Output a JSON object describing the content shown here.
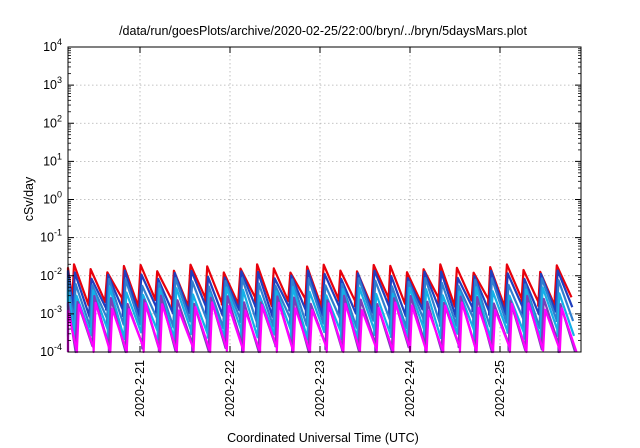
{
  "chart_data": {
    "type": "line",
    "title": "/data/run/goesPlots/archive/2020-02-25/22:00/bryn/../bryn/5daysMars.plot",
    "xlabel": "Coordinated Universal Time (UTC)",
    "ylabel": "cSv/day",
    "y_scale": "log",
    "ylim": [
      0.0001,
      10000
    ],
    "y_ticks": [
      {
        "base": "10",
        "exp": "-4"
      },
      {
        "base": "10",
        "exp": "-3"
      },
      {
        "base": "10",
        "exp": "-2"
      },
      {
        "base": "10",
        "exp": "-1"
      },
      {
        "base": "10",
        "exp": "0"
      },
      {
        "base": "10",
        "exp": "1"
      },
      {
        "base": "10",
        "exp": "2"
      },
      {
        "base": "10",
        "exp": "3"
      },
      {
        "base": "10",
        "exp": "4"
      }
    ],
    "xlim": [
      20.2,
      25.9
    ],
    "x_ticks": [
      {
        "label": "2020-2-21",
        "day": 21
      },
      {
        "label": "2020-2-22",
        "day": 22
      },
      {
        "label": "2020-2-23",
        "day": 23
      },
      {
        "label": "2020-2-24",
        "day": 24
      },
      {
        "label": "2020-2-25",
        "day": 25
      }
    ],
    "grid": true,
    "cycle_period_days": 0.185,
    "cycle_count": 31,
    "series": [
      {
        "color": "#e8000b",
        "peak": 0.016,
        "trough": 0.0021,
        "phase": 0.05
      },
      {
        "color": "#1f3fbf",
        "peak": 0.011,
        "trough": 0.0012,
        "phase": 0.1
      },
      {
        "color": "#2f7fd0",
        "peak": 0.007,
        "trough": 0.0006,
        "phase": 0.15
      },
      {
        "color": "#14b0e8",
        "peak": 0.004,
        "trough": 0.0003,
        "phase": 0.2
      },
      {
        "color": "#7a3fb8",
        "peak": 0.0024,
        "trough": 0.00013,
        "phase": 0.27
      },
      {
        "color": "#ff00ff",
        "peak": 0.0016,
        "trough": 0.0001,
        "phase": 0.35
      }
    ]
  }
}
